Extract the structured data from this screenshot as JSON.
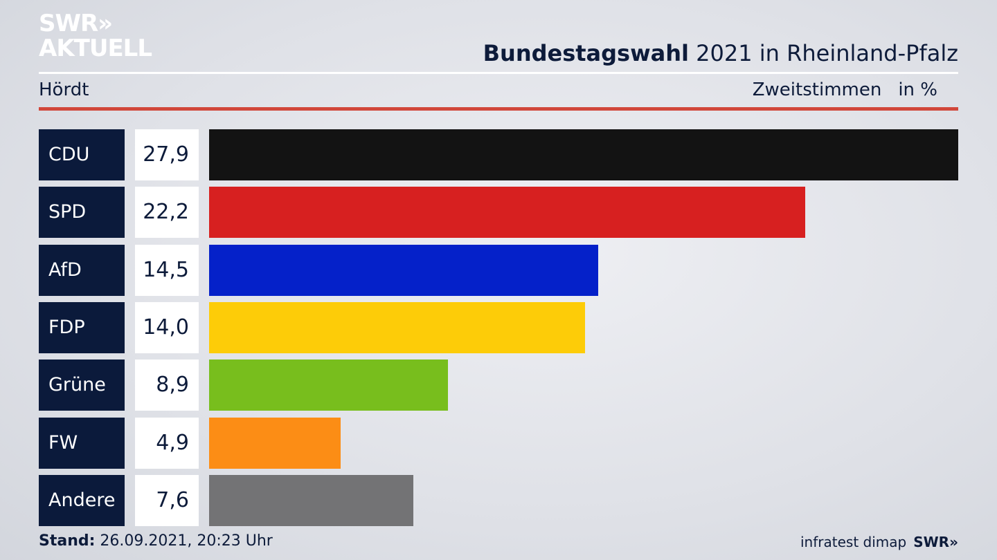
{
  "brand": {
    "line1": "SWR»",
    "line2": "AKTUELL"
  },
  "header": {
    "title_bold": "Bundestagswahl",
    "title_rest": " 2021 in Rheinland-Pfalz",
    "region": "Hördt",
    "measure": "Zweitstimmen",
    "unit": "in %"
  },
  "chart_data": {
    "type": "bar",
    "orientation": "horizontal",
    "title": "Bundestagswahl 2021 in Rheinland-Pfalz",
    "subtitle": "Hördt — Zweitstimmen in %",
    "categories": [
      "CDU",
      "SPD",
      "AfD",
      "FDP",
      "Grüne",
      "FW",
      "Andere"
    ],
    "values": [
      27.9,
      22.2,
      14.5,
      14.0,
      8.9,
      4.9,
      7.6
    ],
    "labels": [
      "27,9",
      "22,2",
      "14,5",
      "14,0",
      "8,9",
      "4,9",
      "7,6"
    ],
    "colors": [
      "#131313",
      "#d72020",
      "#0521c9",
      "#fdcc08",
      "#78be1d",
      "#fc8d15",
      "#737375"
    ],
    "xlim": [
      0,
      27.9
    ],
    "grid": false
  },
  "footer": {
    "stand_label": "Stand:",
    "stand_value": " 26.09.2021, 20:23 Uhr",
    "source": "infratest dimap",
    "logo": "SWR»"
  }
}
